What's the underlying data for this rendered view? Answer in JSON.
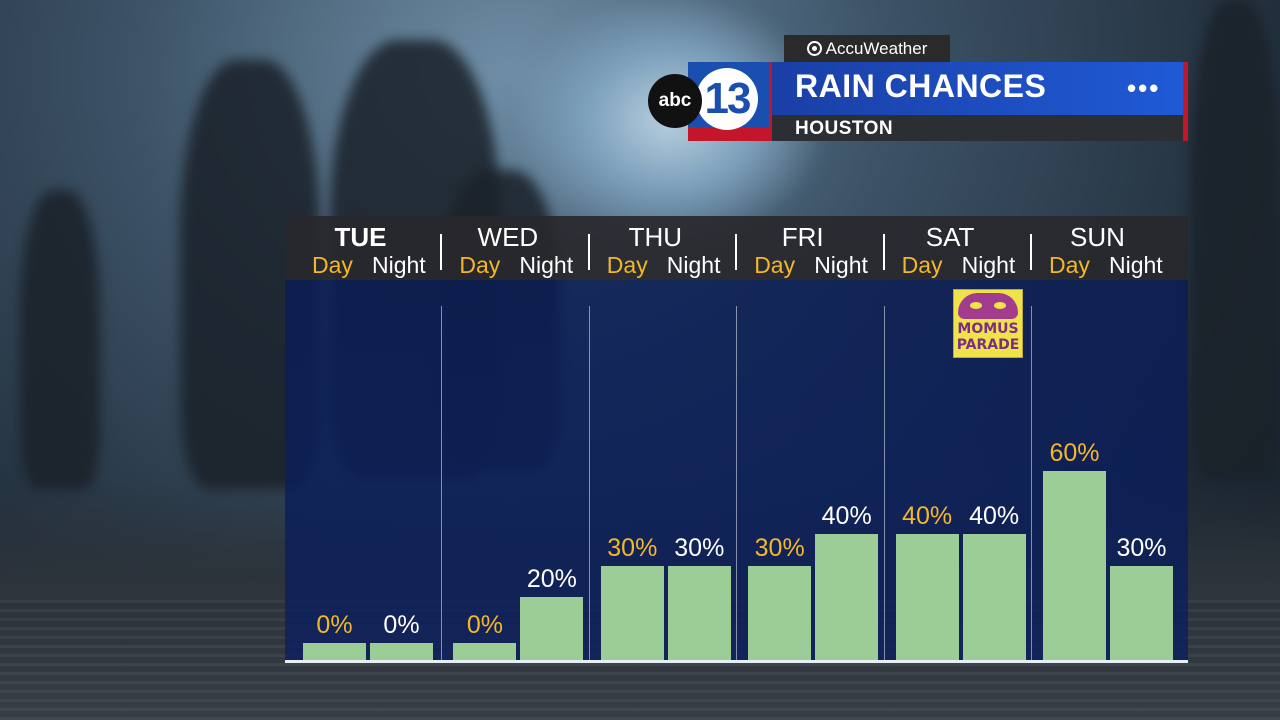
{
  "branding": {
    "partner_label": "AccuWeather",
    "network_label": "abc",
    "channel_number": "13",
    "colors": {
      "brand_blue": "#1a4fb0",
      "brand_red": "#c3162b",
      "day_gold": "#f2b72a",
      "bar_green": "#9ccd97"
    }
  },
  "header": {
    "title": "RAIN CHANCES",
    "subtitle": "HOUSTON",
    "menu_icon": "more-dots-icon"
  },
  "event_badge": {
    "line1": "MOMUS",
    "line2": "PARADE",
    "day": "SAT"
  },
  "chart_data": {
    "type": "bar",
    "title": "RAIN CHANCES",
    "subtitle": "HOUSTON",
    "unit": "%",
    "ylim": [
      0,
      100
    ],
    "categories": [
      "TUE",
      "WED",
      "THU",
      "FRI",
      "SAT",
      "SUN"
    ],
    "highlight_category": "TUE",
    "series": [
      {
        "name": "Day",
        "values": [
          0,
          0,
          30,
          30,
          40,
          60
        ]
      },
      {
        "name": "Night",
        "values": [
          0,
          20,
          30,
          40,
          40,
          30
        ]
      }
    ],
    "labels": {
      "Day": [
        "0%",
        "0%",
        "30%",
        "30%",
        "40%",
        "60%"
      ],
      "Night": [
        "0%",
        "20%",
        "30%",
        "40%",
        "40%",
        "30%"
      ]
    }
  }
}
